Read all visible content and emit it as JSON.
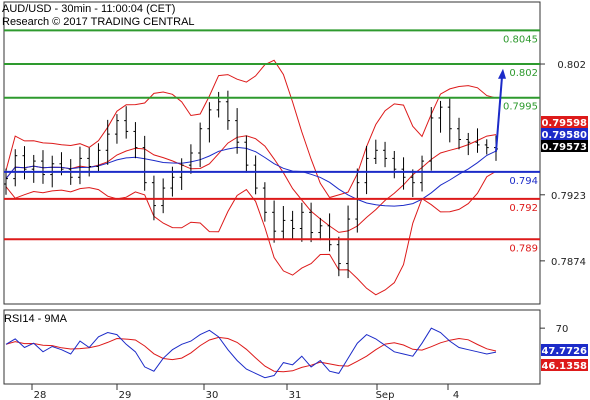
{
  "chart_data": {
    "type": "candlestick",
    "title": "AUD/USD - 30min - 11:00:04 (CET)",
    "subtitle": "Research © 2017 TRADING CENTRAL",
    "xlabel": "",
    "ylabel": "",
    "ylim": [
      0.7842,
      0.8066
    ],
    "x_ticks": [
      "28",
      "29",
      "30",
      "31",
      "Sep",
      "4"
    ],
    "y_ticks": [
      0.802,
      0.7923,
      0.7874
    ],
    "grid": false,
    "levels": [
      {
        "value": 0.8045,
        "label": "0.8045",
        "color": "#2e9a2e"
      },
      {
        "value": 0.802,
        "label": "0.802",
        "color": "#2e9a2e"
      },
      {
        "value": 0.7995,
        "label": "0.7995",
        "color": "#2e9a2e"
      },
      {
        "value": 0.794,
        "label": "0.794",
        "color": "#1c2bc8"
      },
      {
        "value": 0.792,
        "label": "0.792",
        "color": "#dd1a1a"
      },
      {
        "value": 0.789,
        "label": "0.789",
        "color": "#dd1a1a"
      }
    ],
    "badges": [
      {
        "value": 0.79598,
        "label": "0.79598",
        "bg": "#dd1a1a",
        "fg": "#ffffff"
      },
      {
        "value": 0.7958,
        "label": "0.79580",
        "bg": "#1c2bc8",
        "fg": "#ffffff"
      },
      {
        "value": 0.79573,
        "label": "0.79573",
        "bg": "#000000",
        "fg": "#ffffff"
      }
    ],
    "forecast": {
      "from": 0.7955,
      "to": 0.8015,
      "color": "#1c2bc8"
    },
    "price_path": [
      0.7935,
      0.7952,
      0.7942,
      0.7948,
      0.7938,
      0.7946,
      0.7942,
      0.7936,
      0.795,
      0.7944,
      0.7956,
      0.7968,
      0.7978,
      0.797,
      0.7958,
      0.7932,
      0.7915,
      0.7928,
      0.7936,
      0.7945,
      0.7954,
      0.7972,
      0.7986,
      0.7992,
      0.7978,
      0.7962,
      0.7945,
      0.7928,
      0.791,
      0.7896,
      0.7904,
      0.7898,
      0.791,
      0.7895,
      0.79,
      0.7886,
      0.7872,
      0.7905,
      0.7932,
      0.795,
      0.7956,
      0.795,
      0.7942,
      0.7936,
      0.7932,
      0.7948,
      0.798,
      0.7988,
      0.7972,
      0.7964,
      0.7962,
      0.796,
      0.7958,
      0.7957
    ],
    "rsi": {
      "label": "RSI14 - 9MA",
      "ylim": [
        20,
        85
      ],
      "y_ticks": [
        70
      ],
      "rsi_value": "47.7726",
      "ma_value": "46.1358",
      "rsi_color": "#1c2bc8",
      "ma_color": "#dd1a1a",
      "values": [
        55,
        60,
        52,
        56,
        48,
        53,
        50,
        46,
        58,
        52,
        62,
        66,
        64,
        55,
        48,
        34,
        30,
        42,
        50,
        55,
        58,
        64,
        68,
        62,
        50,
        40,
        32,
        28,
        24,
        26,
        38,
        36,
        44,
        34,
        40,
        30,
        28,
        42,
        56,
        64,
        60,
        54,
        48,
        46,
        44,
        56,
        70,
        66,
        58,
        52,
        50,
        48,
        46,
        47.7726
      ]
    }
  }
}
